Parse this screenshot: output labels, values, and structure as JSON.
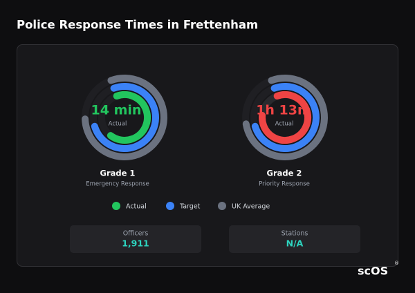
{
  "header": {
    "title": "Police Response Times in Frettenham"
  },
  "gauges": [
    {
      "value": "14 min",
      "value_caption": "Actual",
      "name": "Grade 1",
      "subtitle": "Emergency Response"
    },
    {
      "value": "1h 13m",
      "value_caption": "Actual",
      "name": "Grade 2",
      "subtitle": "Priority Response"
    }
  ],
  "legend": [
    "Actual",
    "Target",
    "UK Average"
  ],
  "stats": [
    {
      "label": "Officers",
      "value": "1,911"
    },
    {
      "label": "Stations",
      "value": "N/A"
    }
  ],
  "logo": {
    "text": "scOS",
    "mark": "®"
  }
}
